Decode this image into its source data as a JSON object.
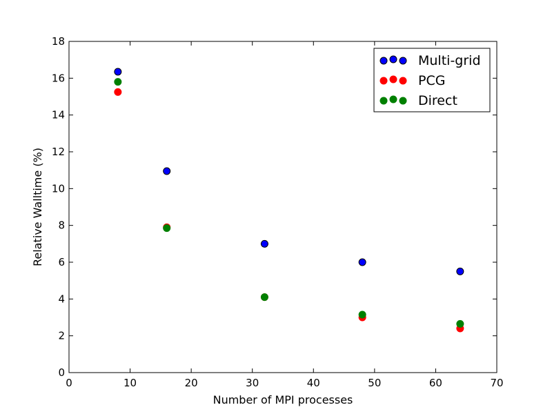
{
  "chart_data": {
    "type": "scatter",
    "xlabel": "Number of MPI processes",
    "ylabel": "Relative Walltime (%)",
    "xlim": [
      0,
      70
    ],
    "ylim": [
      0,
      18
    ],
    "xticks": [
      0,
      10,
      20,
      30,
      40,
      50,
      60,
      70
    ],
    "yticks": [
      0,
      2,
      4,
      6,
      8,
      10,
      12,
      14,
      16,
      18
    ],
    "grid": false,
    "legend": "top-right",
    "series": [
      {
        "name": "Multi-grid",
        "color": "#0000ff",
        "edge": "#000000",
        "x": [
          8,
          16,
          32,
          48,
          64
        ],
        "y": [
          16.35,
          10.95,
          7.0,
          6.0,
          5.5
        ]
      },
      {
        "name": "PCG",
        "color": "#ff0000",
        "edge": "#ff0000",
        "x": [
          8,
          16,
          32,
          48,
          64
        ],
        "y": [
          15.25,
          7.9,
          4.1,
          3.0,
          2.4
        ]
      },
      {
        "name": "Direct",
        "color": "#008000",
        "edge": "#008000",
        "x": [
          8,
          16,
          32,
          48,
          64
        ],
        "y": [
          15.8,
          7.85,
          4.1,
          3.15,
          2.65
        ]
      }
    ]
  }
}
